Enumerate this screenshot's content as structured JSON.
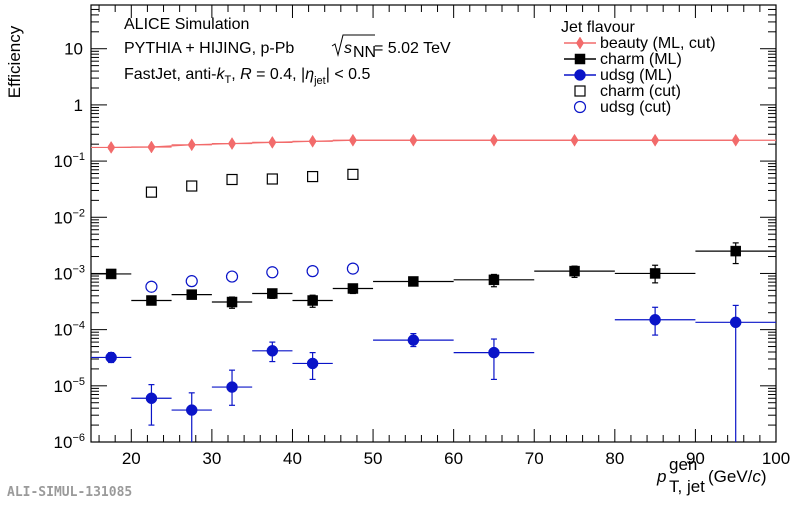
{
  "chart_data": {
    "type": "scatter",
    "title": "",
    "ylabel": "Efficiency",
    "xlabel": {
      "main": "p",
      "sup": "gen",
      "sub": "T, jet",
      "unit_prefix": "(GeV/",
      "unit_c": "c",
      "unit_suffix": ")"
    },
    "xlim": [
      15,
      100
    ],
    "ylim": [
      1e-06,
      60
    ],
    "y_scale": "log",
    "x_ticks": [
      20,
      30,
      40,
      50,
      60,
      70,
      80,
      90,
      100
    ],
    "y_ticks": [
      {
        "value": 1e-06,
        "base": "10",
        "exp": "−6"
      },
      {
        "value": 1e-05,
        "base": "10",
        "exp": "−5"
      },
      {
        "value": 0.0001,
        "base": "10",
        "exp": "−4"
      },
      {
        "value": 0.001,
        "base": "10",
        "exp": "−3"
      },
      {
        "value": 0.01,
        "base": "10",
        "exp": "−2"
      },
      {
        "value": 0.1,
        "base": "10",
        "exp": "−1"
      },
      {
        "value": 1,
        "base": "1",
        "exp": ""
      },
      {
        "value": 10,
        "base": "10",
        "exp": ""
      }
    ],
    "annotations": {
      "line1": "ALICE Simulation",
      "line2_prefix": "PYTHIA + HIJING, p-Pb ",
      "line2_s": "s",
      "line2_sub": "NN",
      "line2_suffix": " = 5.02 TeV",
      "line3_a": "FastJet, anti-",
      "line3_k": "k",
      "line3_ksub": "T",
      "line3_b": ", ",
      "line3_R": "R",
      "line3_c": " = 0.4, |",
      "line3_eta": "η",
      "line3_etasub": "jet",
      "line3_d": "| < 0.5"
    },
    "legend": {
      "title": "Jet flavour",
      "placement": "top-right"
    },
    "series": [
      {
        "name": "beauty (ML, cut)",
        "color": "#f26b6b",
        "marker": "diamond",
        "filled": true,
        "connected": true,
        "points": [
          {
            "x": 17.5,
            "xlo": 15,
            "xhi": 20,
            "y": 0.175,
            "ylo": 0.165,
            "yhi": 0.185
          },
          {
            "x": 22.5,
            "xlo": 20,
            "xhi": 25,
            "y": 0.178,
            "ylo": 0.168,
            "yhi": 0.188
          },
          {
            "x": 27.5,
            "xlo": 25,
            "xhi": 30,
            "y": 0.195,
            "ylo": 0.185,
            "yhi": 0.205
          },
          {
            "x": 32.5,
            "xlo": 30,
            "xhi": 35,
            "y": 0.205,
            "ylo": 0.195,
            "yhi": 0.215
          },
          {
            "x": 37.5,
            "xlo": 35,
            "xhi": 40,
            "y": 0.215,
            "ylo": 0.205,
            "yhi": 0.225
          },
          {
            "x": 42.5,
            "xlo": 40,
            "xhi": 45,
            "y": 0.225,
            "ylo": 0.215,
            "yhi": 0.235
          },
          {
            "x": 47.5,
            "xlo": 45,
            "xhi": 50,
            "y": 0.235,
            "ylo": 0.225,
            "yhi": 0.245
          },
          {
            "x": 55,
            "xlo": 50,
            "xhi": 60,
            "y": 0.235,
            "ylo": 0.225,
            "yhi": 0.245
          },
          {
            "x": 65,
            "xlo": 60,
            "xhi": 70,
            "y": 0.235,
            "ylo": 0.225,
            "yhi": 0.245
          },
          {
            "x": 75,
            "xlo": 70,
            "xhi": 80,
            "y": 0.235,
            "ylo": 0.225,
            "yhi": 0.245
          },
          {
            "x": 85,
            "xlo": 80,
            "xhi": 90,
            "y": 0.235,
            "ylo": 0.225,
            "yhi": 0.245
          },
          {
            "x": 95,
            "xlo": 90,
            "xhi": 100,
            "y": 0.235,
            "ylo": 0.225,
            "yhi": 0.245
          }
        ]
      },
      {
        "name": "charm (ML)",
        "color": "#000000",
        "marker": "square",
        "filled": true,
        "connected": false,
        "points": [
          {
            "x": 17.5,
            "xlo": 15,
            "xhi": 20,
            "y": 0.00098,
            "ylo": 0.00088,
            "yhi": 0.00108
          },
          {
            "x": 22.5,
            "xlo": 20,
            "xhi": 25,
            "y": 0.00033,
            "ylo": 0.00028,
            "yhi": 0.00038
          },
          {
            "x": 27.5,
            "xlo": 25,
            "xhi": 30,
            "y": 0.00042,
            "ylo": 0.00036,
            "yhi": 0.00048
          },
          {
            "x": 32.5,
            "xlo": 30,
            "xhi": 35,
            "y": 0.00031,
            "ylo": 0.00024,
            "yhi": 0.00038
          },
          {
            "x": 37.5,
            "xlo": 35,
            "xhi": 40,
            "y": 0.00044,
            "ylo": 0.00036,
            "yhi": 0.00052
          },
          {
            "x": 42.5,
            "xlo": 40,
            "xhi": 45,
            "y": 0.00033,
            "ylo": 0.00025,
            "yhi": 0.00041
          },
          {
            "x": 47.5,
            "xlo": 45,
            "xhi": 50,
            "y": 0.00054,
            "ylo": 0.00044,
            "yhi": 0.00064
          },
          {
            "x": 55,
            "xlo": 50,
            "xhi": 60,
            "y": 0.00072,
            "ylo": 0.00062,
            "yhi": 0.00082
          },
          {
            "x": 65,
            "xlo": 60,
            "xhi": 70,
            "y": 0.00077,
            "ylo": 0.00058,
            "yhi": 0.00096
          },
          {
            "x": 75,
            "xlo": 70,
            "xhi": 80,
            "y": 0.0011,
            "ylo": 0.00085,
            "yhi": 0.00135
          },
          {
            "x": 85,
            "xlo": 80,
            "xhi": 90,
            "y": 0.001,
            "ylo": 0.00068,
            "yhi": 0.0014
          },
          {
            "x": 95,
            "xlo": 90,
            "xhi": 100,
            "y": 0.0025,
            "ylo": 0.0015,
            "yhi": 0.0035
          }
        ]
      },
      {
        "name": "udsg (ML)",
        "color": "#0a14c8",
        "marker": "circle",
        "filled": true,
        "connected": false,
        "points": [
          {
            "x": 17.5,
            "xlo": 15,
            "xhi": 20,
            "y": 3.2e-05,
            "ylo": 2.6e-05,
            "yhi": 3.9e-05
          },
          {
            "x": 22.5,
            "xlo": 20,
            "xhi": 25,
            "y": 6e-06,
            "ylo": 2e-06,
            "yhi": 1.05e-05
          },
          {
            "x": 27.5,
            "xlo": 25,
            "xhi": 30,
            "y": 3.7e-06,
            "ylo": 1e-06,
            "yhi": 7.5e-06
          },
          {
            "x": 32.5,
            "xlo": 30,
            "xhi": 35,
            "y": 9.5e-06,
            "ylo": 4.5e-06,
            "yhi": 1.9e-05
          },
          {
            "x": 37.5,
            "xlo": 35,
            "xhi": 40,
            "y": 4.2e-05,
            "ylo": 2.7e-05,
            "yhi": 6e-05
          },
          {
            "x": 42.5,
            "xlo": 40,
            "xhi": 45,
            "y": 2.5e-05,
            "ylo": 1.3e-05,
            "yhi": 3.9e-05
          },
          {
            "x": 55,
            "xlo": 50,
            "xhi": 60,
            "y": 6.5e-05,
            "ylo": 5e-05,
            "yhi": 8.5e-05
          },
          {
            "x": 65,
            "xlo": 60,
            "xhi": 70,
            "y": 3.9e-05,
            "ylo": 1.3e-05,
            "yhi": 6.8e-05
          },
          {
            "x": 85,
            "xlo": 80,
            "xhi": 90,
            "y": 0.00015,
            "ylo": 8e-05,
            "yhi": 0.00025
          },
          {
            "x": 95,
            "xlo": 90,
            "xhi": 100,
            "y": 0.000135,
            "ylo": 1e-06,
            "yhi": 0.00027
          }
        ]
      },
      {
        "name": "charm (cut)",
        "color": "#000000",
        "marker": "square",
        "filled": false,
        "connected": false,
        "points": [
          {
            "x": 22.5,
            "y": 0.028
          },
          {
            "x": 27.5,
            "y": 0.036
          },
          {
            "x": 32.5,
            "y": 0.047
          },
          {
            "x": 37.5,
            "y": 0.048
          },
          {
            "x": 42.5,
            "y": 0.053
          },
          {
            "x": 47.5,
            "y": 0.058
          }
        ]
      },
      {
        "name": "udsg (cut)",
        "color": "#0a14c8",
        "marker": "circle",
        "filled": false,
        "connected": false,
        "points": [
          {
            "x": 22.5,
            "y": 0.00058
          },
          {
            "x": 27.5,
            "y": 0.00073
          },
          {
            "x": 32.5,
            "y": 0.00088
          },
          {
            "x": 37.5,
            "y": 0.00105
          },
          {
            "x": 42.5,
            "y": 0.0011
          },
          {
            "x": 47.5,
            "y": 0.00122
          }
        ]
      }
    ]
  },
  "watermark": "ALI-SIMUL-131085"
}
